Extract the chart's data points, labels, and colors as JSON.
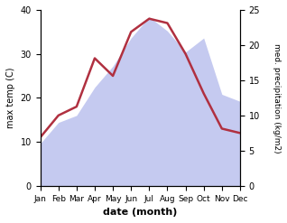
{
  "months": [
    "Jan",
    "Feb",
    "Mar",
    "Apr",
    "May",
    "Jun",
    "Jul",
    "Aug",
    "Sep",
    "Oct",
    "Nov",
    "Dec"
  ],
  "max_temp": [
    11,
    16,
    18,
    29,
    25,
    35,
    38,
    37,
    30,
    21,
    13,
    12
  ],
  "precipitation_kg": [
    6,
    9,
    10,
    14,
    17,
    21,
    24,
    22,
    19,
    21,
    13,
    12
  ],
  "temp_color": "#b03040",
  "precip_color_fill": "#c5caf0",
  "xlabel": "date (month)",
  "ylabel_left": "max temp (C)",
  "ylabel_right": "med. precipitation (kg/m2)",
  "ylim_left": [
    0,
    40
  ],
  "ylim_right": [
    0,
    25
  ],
  "yticks_left": [
    0,
    10,
    20,
    30,
    40
  ],
  "yticks_right": [
    0,
    5,
    10,
    15,
    20,
    25
  ],
  "background_color": "#ffffff",
  "line_width": 1.8
}
